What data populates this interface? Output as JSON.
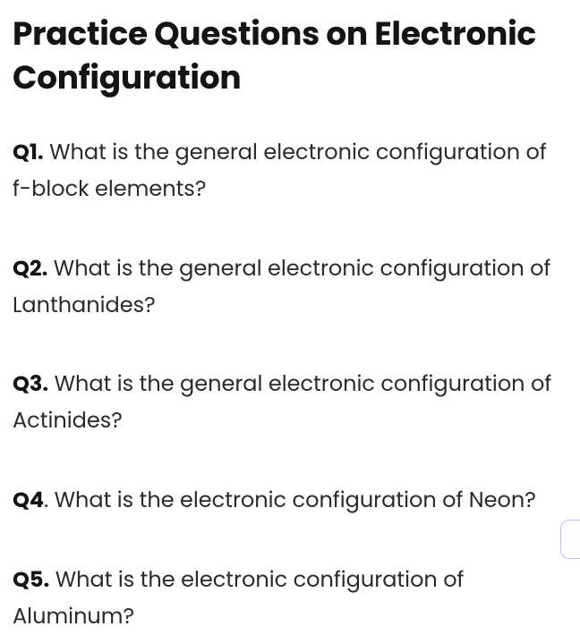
{
  "heading": "Practice Questions on Electronic Configuration",
  "questions": [
    {
      "label": "Q1.",
      "text": " What is the general electronic configuration of f-block elements?"
    },
    {
      "label": "Q2.",
      "text": " What is the general electronic configuration of Lanthanides?"
    },
    {
      "label": "Q3.",
      "text": " What is the general electronic configuration of Actinides?"
    },
    {
      "label": "Q4",
      "text": ". What is the electronic configuration of Neon?"
    },
    {
      "label": "Q5.",
      "text": " What is the electronic configuration of Aluminum?"
    }
  ],
  "colors": {
    "text": "#2a2a2a",
    "heading": "#141414",
    "background": "#ffffff",
    "button_border": "#c9b8f5",
    "button_bg": "#fdfcff"
  }
}
